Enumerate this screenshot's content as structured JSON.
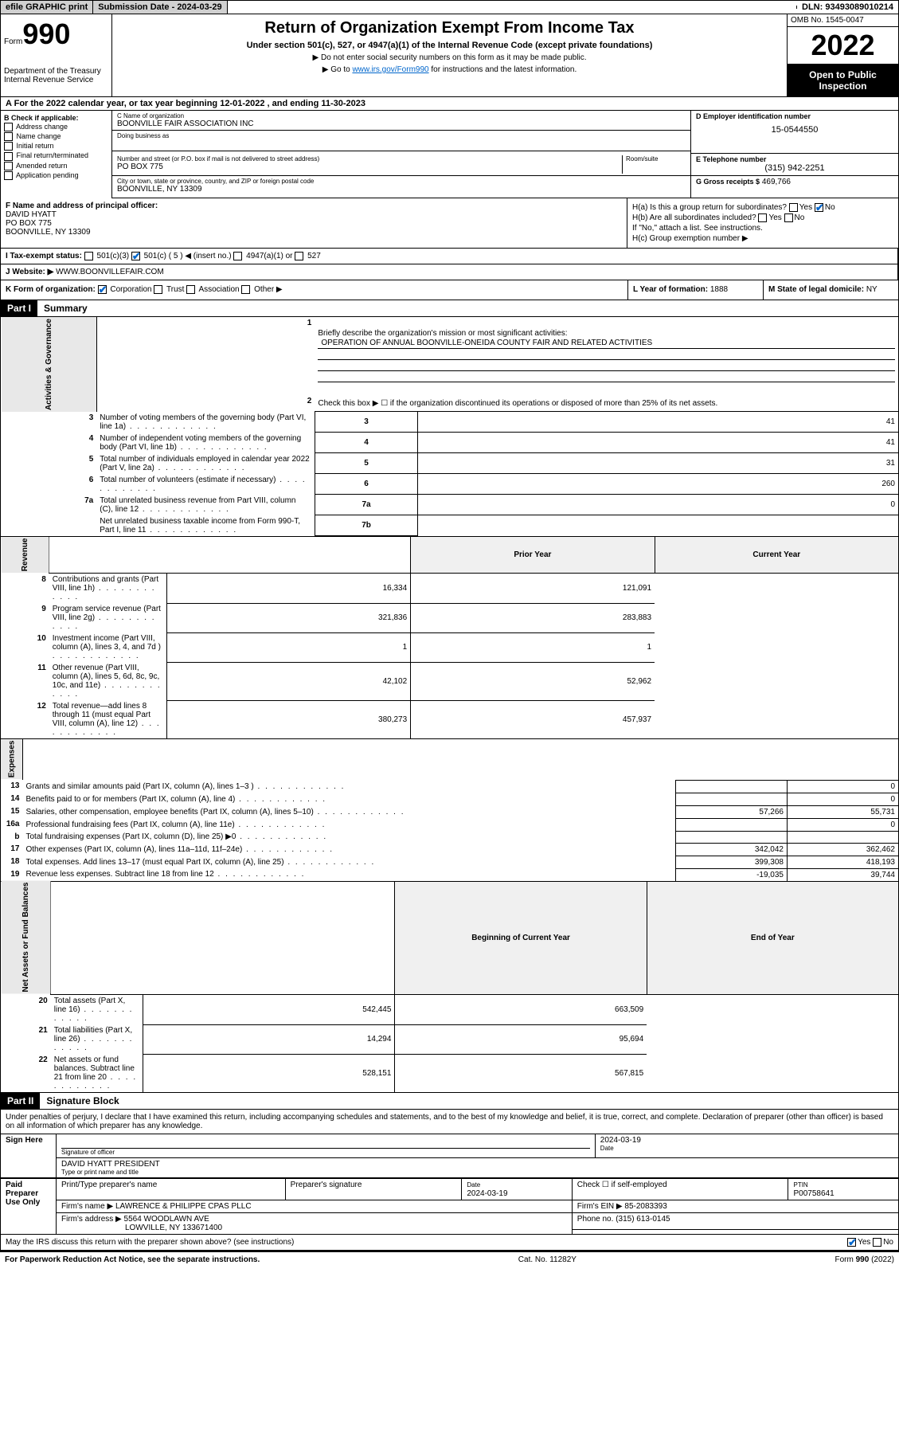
{
  "topbar": {
    "efile": "efile GRAPHIC print",
    "sub_date_label": "Submission Date - 2024-03-29",
    "dln": "DLN: 93493089010214"
  },
  "header": {
    "form_label": "Form",
    "form_num": "990",
    "dept": "Department of the Treasury Internal Revenue Service",
    "title": "Return of Organization Exempt From Income Tax",
    "subtitle": "Under section 501(c), 527, or 4947(a)(1) of the Internal Revenue Code (except private foundations)",
    "instr1": "▶ Do not enter social security numbers on this form as it may be made public.",
    "instr2_pre": "▶ Go to ",
    "instr2_link": "www.irs.gov/Form990",
    "instr2_post": " for instructions and the latest information.",
    "omb": "OMB No. 1545-0047",
    "year": "2022",
    "open": "Open to Public Inspection"
  },
  "period": "For the 2022 calendar year, or tax year beginning 12-01-2022   , and ending 11-30-2023",
  "section_b": {
    "label": "B Check if applicable:",
    "items": [
      "Address change",
      "Name change",
      "Initial return",
      "Final return/terminated",
      "Amended return",
      "Application pending"
    ]
  },
  "section_c": {
    "name_label": "C Name of organization",
    "name": "BOONVILLE FAIR ASSOCIATION INC",
    "dba_label": "Doing business as",
    "dba": "",
    "street_label": "Number and street (or P.O. box if mail is not delivered to street address)",
    "room_label": "Room/suite",
    "street": "PO BOX 775",
    "city_label": "City or town, state or province, country, and ZIP or foreign postal code",
    "city": "BOONVILLE, NY  13309"
  },
  "section_d": {
    "label": "D Employer identification number",
    "value": "15-0544550"
  },
  "section_e": {
    "label": "E Telephone number",
    "value": "(315) 942-2251"
  },
  "section_g": {
    "label": "G Gross receipts $",
    "value": "469,766"
  },
  "section_f": {
    "label": "F  Name and address of principal officer:",
    "name": "DAVID HYATT",
    "street": "PO BOX 775",
    "city": "BOONVILLE, NY  13309"
  },
  "section_h": {
    "ha": "H(a)  Is this a group return for subordinates?",
    "ha_no": true,
    "hb": "H(b)  Are all subordinates included?",
    "hb_note": "If \"No,\" attach a list. See instructions.",
    "hc": "H(c)  Group exemption number ▶"
  },
  "section_i": {
    "label": "I    Tax-exempt status:",
    "c5_checked": true,
    "c5_text": "501(c) ( 5 ) ◀ (insert no.)"
  },
  "section_j": {
    "label": "J   Website: ▶",
    "value": "WWW.BOONVILLEFAIR.COM"
  },
  "section_k": {
    "label": "K Form of organization:",
    "corp_checked": true,
    "items": [
      "Corporation",
      "Trust",
      "Association",
      "Other ▶"
    ]
  },
  "section_l": {
    "label": "L Year of formation:",
    "value": "1888"
  },
  "section_m": {
    "label": "M State of legal domicile:",
    "value": "NY"
  },
  "part1": {
    "header": "Part I",
    "title": "Summary",
    "line1_label": "Briefly describe the organization's mission or most significant activities:",
    "line1_text": "OPERATION OF ANNUAL BOONVILLE-ONEIDA COUNTY FAIR AND RELATED ACTIVITIES",
    "line2": "Check this box ▶ ☐  if the organization discontinued its operations or disposed of more than 25% of its net assets.",
    "rows_gov": [
      {
        "n": "3",
        "desc": "Number of voting members of the governing body (Part VI, line 1a)",
        "box": "3",
        "val": "41"
      },
      {
        "n": "4",
        "desc": "Number of independent voting members of the governing body (Part VI, line 1b)",
        "box": "4",
        "val": "41"
      },
      {
        "n": "5",
        "desc": "Total number of individuals employed in calendar year 2022 (Part V, line 2a)",
        "box": "5",
        "val": "31"
      },
      {
        "n": "6",
        "desc": "Total number of volunteers (estimate if necessary)",
        "box": "6",
        "val": "260"
      },
      {
        "n": "7a",
        "desc": "Total unrelated business revenue from Part VIII, column (C), line 12",
        "box": "7a",
        "val": "0"
      },
      {
        "n": "",
        "desc": "Net unrelated business taxable income from Form 990-T, Part I, line 11",
        "box": "7b",
        "val": ""
      }
    ],
    "prior_hdr": "Prior Year",
    "curr_hdr": "Current Year",
    "rows_rev": [
      {
        "n": "8",
        "desc": "Contributions and grants (Part VIII, line 1h)",
        "prior": "16,334",
        "curr": "121,091"
      },
      {
        "n": "9",
        "desc": "Program service revenue (Part VIII, line 2g)",
        "prior": "321,836",
        "curr": "283,883"
      },
      {
        "n": "10",
        "desc": "Investment income (Part VIII, column (A), lines 3, 4, and 7d )",
        "prior": "1",
        "curr": "1"
      },
      {
        "n": "11",
        "desc": "Other revenue (Part VIII, column (A), lines 5, 6d, 8c, 9c, 10c, and 11e)",
        "prior": "42,102",
        "curr": "52,962"
      },
      {
        "n": "12",
        "desc": "Total revenue—add lines 8 through 11 (must equal Part VIII, column (A), line 12)",
        "prior": "380,273",
        "curr": "457,937"
      }
    ],
    "rows_exp": [
      {
        "n": "13",
        "desc": "Grants and similar amounts paid (Part IX, column (A), lines 1–3 )",
        "prior": "",
        "curr": "0"
      },
      {
        "n": "14",
        "desc": "Benefits paid to or for members (Part IX, column (A), line 4)",
        "prior": "",
        "curr": "0"
      },
      {
        "n": "15",
        "desc": "Salaries, other compensation, employee benefits (Part IX, column (A), lines 5–10)",
        "prior": "57,266",
        "curr": "55,731"
      },
      {
        "n": "16a",
        "desc": "Professional fundraising fees (Part IX, column (A), line 11e)",
        "prior": "",
        "curr": "0"
      },
      {
        "n": "b",
        "desc": "Total fundraising expenses (Part IX, column (D), line 25) ▶0",
        "prior": "",
        "curr": ""
      },
      {
        "n": "17",
        "desc": "Other expenses (Part IX, column (A), lines 11a–11d, 11f–24e)",
        "prior": "342,042",
        "curr": "362,462"
      },
      {
        "n": "18",
        "desc": "Total expenses. Add lines 13–17 (must equal Part IX, column (A), line 25)",
        "prior": "399,308",
        "curr": "418,193"
      },
      {
        "n": "19",
        "desc": "Revenue less expenses. Subtract line 18 from line 12",
        "prior": "-19,035",
        "curr": "39,744"
      }
    ],
    "begin_hdr": "Beginning of Current Year",
    "end_hdr": "End of Year",
    "rows_net": [
      {
        "n": "20",
        "desc": "Total assets (Part X, line 16)",
        "prior": "542,445",
        "curr": "663,509"
      },
      {
        "n": "21",
        "desc": "Total liabilities (Part X, line 26)",
        "prior": "14,294",
        "curr": "95,694"
      },
      {
        "n": "22",
        "desc": "Net assets or fund balances. Subtract line 21 from line 20",
        "prior": "528,151",
        "curr": "567,815"
      }
    ],
    "vlabels": {
      "gov": "Activities & Governance",
      "rev": "Revenue",
      "exp": "Expenses",
      "net": "Net Assets or Fund Balances"
    }
  },
  "part2": {
    "header": "Part II",
    "title": "Signature Block",
    "intro": "Under penalties of perjury, I declare that I have examined this return, including accompanying schedules and statements, and to the best of my knowledge and belief, it is true, correct, and complete. Declaration of preparer (other than officer) is based on all information of which preparer has any knowledge.",
    "sign_here": "Sign Here",
    "sig_officer": "Signature of officer",
    "sig_date": "2024-03-19",
    "date_label": "Date",
    "officer_name": "DAVID HYATT PRESIDENT",
    "type_name": "Type or print name and title",
    "paid_prep": "Paid Preparer Use Only",
    "prep_name_label": "Print/Type preparer's name",
    "prep_sig_label": "Preparer's signature",
    "prep_date_label": "Date",
    "prep_date": "2024-03-19",
    "check_self": "Check ☐ if self-employed",
    "ptin_label": "PTIN",
    "ptin": "P00758641",
    "firm_name_label": "Firm's name    ▶",
    "firm_name": "LAWRENCE & PHILIPPE CPAS PLLC",
    "firm_ein_label": "Firm's EIN ▶",
    "firm_ein": "85-2083393",
    "firm_addr_label": "Firm's address ▶",
    "firm_addr1": "5564 WOODLAWN AVE",
    "firm_addr2": "LOWVILLE, NY  133671400",
    "phone_label": "Phone no.",
    "phone": "(315) 613-0145",
    "discuss": "May the IRS discuss this return with the preparer shown above? (see instructions)",
    "discuss_yes": true
  },
  "footer": {
    "left": "For Paperwork Reduction Act Notice, see the separate instructions.",
    "mid": "Cat. No. 11282Y",
    "right": "Form 990 (2022)"
  }
}
